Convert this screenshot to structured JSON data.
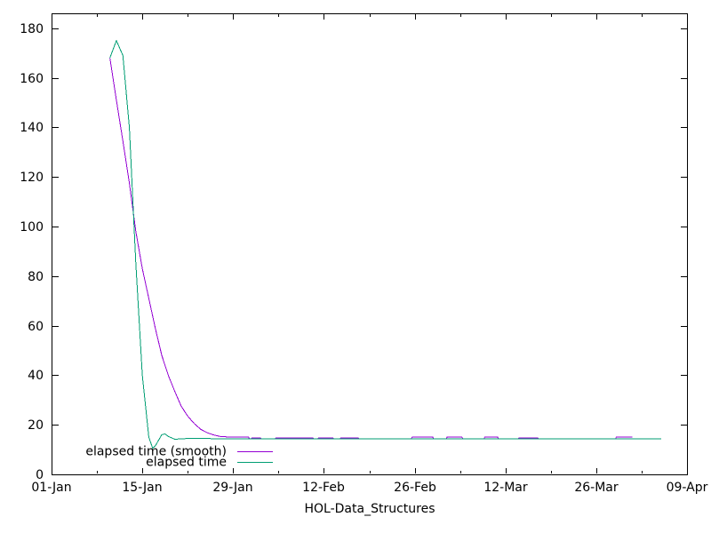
{
  "chart_data": {
    "type": "line",
    "title": "",
    "xlabel": "HOL-Data_Structures",
    "ylabel": "",
    "x_tick_labels": [
      "01-Jan",
      "15-Jan",
      "29-Jan",
      "12-Feb",
      "26-Feb",
      "12-Mar",
      "26-Mar",
      "09-Apr"
    ],
    "x_tick_days": [
      0,
      14,
      28,
      42,
      56,
      70,
      84,
      98
    ],
    "x_minor_tick_days": [
      7,
      21,
      35,
      49,
      63,
      77,
      91
    ],
    "y_ticks": [
      0,
      20,
      40,
      60,
      80,
      100,
      120,
      140,
      160,
      180
    ],
    "ylim": [
      0,
      186
    ],
    "xlim_days": [
      0,
      98
    ],
    "grid": false,
    "legend_position": "inside-bottom-left",
    "series": [
      {
        "name": "elapsed time (smooth)",
        "color": "#9400d3",
        "points": [
          [
            9,
            168
          ],
          [
            10,
            151
          ],
          [
            11,
            134.5
          ],
          [
            12,
            117.5
          ],
          [
            13,
            98
          ],
          [
            14,
            83
          ],
          [
            15,
            71
          ],
          [
            16,
            59
          ],
          [
            17,
            48
          ],
          [
            18,
            40
          ],
          [
            19,
            33.5
          ],
          [
            20,
            27.5
          ],
          [
            21,
            23.5
          ],
          [
            22,
            20.5
          ],
          [
            23,
            18.2
          ],
          [
            24,
            16.8
          ],
          [
            25,
            15.9
          ],
          [
            26,
            15.3
          ],
          [
            27.7,
            15.0
          ],
          [
            30.4,
            15.0
          ],
          [
            30.5,
            14.4
          ],
          [
            30.8,
            14.4
          ],
          [
            30.9,
            14.7
          ],
          [
            32.2,
            14.7
          ],
          [
            32.3,
            14.4
          ],
          [
            34.5,
            14.4
          ],
          [
            34.6,
            14.7
          ],
          [
            40.3,
            14.7
          ],
          [
            40.4,
            14.4
          ],
          [
            41.1,
            14.4
          ],
          [
            41.2,
            14.7
          ],
          [
            43.4,
            14.7
          ],
          [
            43.5,
            14.4
          ],
          [
            44.5,
            14.4
          ],
          [
            44.6,
            14.7
          ],
          [
            47.3,
            14.7
          ],
          [
            47.4,
            14.4
          ],
          [
            55.5,
            14.4
          ],
          [
            55.6,
            15.0
          ],
          [
            58.8,
            15.0
          ],
          [
            58.9,
            14.4
          ],
          [
            60.9,
            14.4
          ],
          [
            61.0,
            15.0
          ],
          [
            63.3,
            15.0
          ],
          [
            63.4,
            14.4
          ],
          [
            66.7,
            14.4
          ],
          [
            66.8,
            15.0
          ],
          [
            68.8,
            15.0
          ],
          [
            68.9,
            14.4
          ],
          [
            72.0,
            14.4
          ],
          [
            72.1,
            14.7
          ],
          [
            75.0,
            14.7
          ],
          [
            75.1,
            14.4
          ],
          [
            87.0,
            14.4
          ],
          [
            87.1,
            15.0
          ],
          [
            89.6,
            15.0
          ]
        ]
      },
      {
        "name": "elapsed time",
        "color": "#009e73",
        "points": [
          [
            9,
            168
          ],
          [
            10,
            175
          ],
          [
            11,
            169
          ],
          [
            12,
            140
          ],
          [
            13,
            85
          ],
          [
            14,
            40
          ],
          [
            15,
            15
          ],
          [
            15.6,
            10.5
          ],
          [
            16,
            11.5
          ],
          [
            17,
            16
          ],
          [
            17.5,
            16.3
          ],
          [
            18,
            15.3
          ],
          [
            19,
            14.2
          ],
          [
            20,
            14.3
          ],
          [
            21,
            14.5
          ],
          [
            22,
            14.6
          ],
          [
            23,
            14.5
          ],
          [
            25,
            14.4
          ],
          [
            94,
            14.4
          ]
        ]
      }
    ]
  },
  "colors": {
    "background": "#ffffff",
    "axis": "#000000",
    "text": "#000000"
  }
}
